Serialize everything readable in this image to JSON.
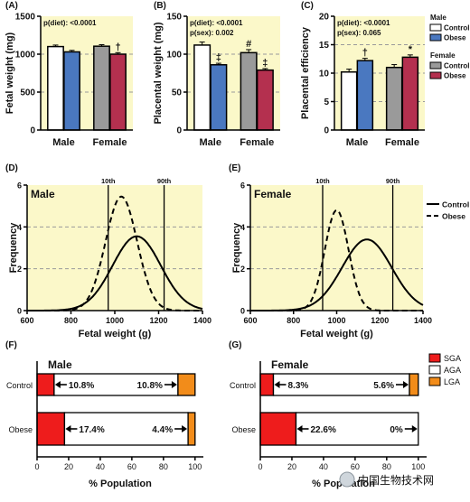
{
  "colors": {
    "panel_bg": "#fbf8c9",
    "male_control": "#ffffff",
    "male_obese": "#4a78c0",
    "female_control": "#9a9a9a",
    "female_obese": "#b4304f",
    "sga": "#ee1c1c",
    "agf": "#ffffff",
    "lga": "#f28c1a"
  },
  "legend_top": {
    "male_title": "Male",
    "female_title": "Female",
    "control": "Control",
    "obese": "Obese"
  },
  "legend_dist": {
    "control": "Control",
    "obese": "Obese"
  },
  "legend_pop": {
    "sga": "SGA",
    "aga": "AGA",
    "lga": "LGA"
  },
  "watermark": "中国生物技术网",
  "chart_data": [
    {
      "panel": "(A)",
      "type": "bar",
      "ylabel": "Fetal weight (mg)",
      "ylim": [
        0,
        1500
      ],
      "yticks": [
        0,
        500,
        1000,
        1500
      ],
      "categories": [
        "Male",
        "Female"
      ],
      "series": [
        {
          "name": "Control",
          "values": [
            1100,
            1105
          ],
          "errors": [
            20,
            20
          ]
        },
        {
          "name": "Obese",
          "values": [
            1030,
            1000
          ],
          "errors": [
            20,
            20
          ]
        }
      ],
      "stats": [
        "p(diet): <0.0001"
      ],
      "marks": [
        {
          "group": 1,
          "series": 1,
          "symbol": "†"
        }
      ]
    },
    {
      "panel": "(B)",
      "type": "bar",
      "ylabel": "Placental weight (mg)",
      "ylim": [
        0,
        150
      ],
      "yticks": [
        0,
        50,
        100,
        150
      ],
      "categories": [
        "Male",
        "Female"
      ],
      "series": [
        {
          "name": "Control",
          "values": [
            112,
            102
          ],
          "errors": [
            4,
            4
          ]
        },
        {
          "name": "Obese",
          "values": [
            86,
            79
          ],
          "errors": [
            2,
            2
          ]
        }
      ],
      "stats": [
        "p(diet): <0.0001",
        "p(sex): 0.002"
      ],
      "marks": [
        {
          "group": 0,
          "series": 1,
          "symbol": "‡"
        },
        {
          "group": 1,
          "series": 0,
          "symbol": "#"
        },
        {
          "group": 1,
          "series": 1,
          "symbol": "‡"
        }
      ]
    },
    {
      "panel": "(C)",
      "type": "bar",
      "ylabel": "Placental efficiency",
      "ylim": [
        0,
        20
      ],
      "yticks": [
        0,
        5,
        10,
        15,
        20
      ],
      "categories": [
        "Male",
        "Female"
      ],
      "series": [
        {
          "name": "Control",
          "values": [
            10.2,
            11.0
          ],
          "errors": [
            0.5,
            0.5
          ]
        },
        {
          "name": "Obese",
          "values": [
            12.2,
            12.8
          ],
          "errors": [
            0.4,
            0.4
          ]
        }
      ],
      "stats": [
        "p(diet): <0.0001",
        "p(sex): 0.065"
      ],
      "marks": [
        {
          "group": 0,
          "series": 1,
          "symbol": "†"
        },
        {
          "group": 1,
          "series": 1,
          "symbol": "*"
        }
      ]
    },
    {
      "panel": "(D)",
      "type": "line",
      "label": "Male",
      "xlabel": "Fetal weight (g)",
      "ylabel": "Frequency",
      "xlim": [
        600,
        1400
      ],
      "ylim": [
        0,
        6
      ],
      "xticks": [
        600,
        800,
        1000,
        1200,
        1400
      ],
      "yticks": [
        0,
        2,
        4,
        6
      ],
      "percentile_lines": [
        {
          "label": "10th",
          "x": 970
        },
        {
          "label": "90th",
          "x": 1225
        }
      ],
      "series": [
        {
          "name": "Control",
          "style": "solid",
          "mean": 1100,
          "sd": 110,
          "peak": 3.55
        },
        {
          "name": "Obese",
          "style": "dashed",
          "mean": 1030,
          "sd": 72,
          "peak": 5.45
        }
      ]
    },
    {
      "panel": "(E)",
      "type": "line",
      "label": "Female",
      "xlabel": "Fetal weight (g)",
      "ylabel": "Frequency",
      "xlim": [
        600,
        1400
      ],
      "ylim": [
        0,
        6
      ],
      "xticks": [
        600,
        800,
        1000,
        1200,
        1400
      ],
      "yticks": [
        0,
        2,
        4,
        6
      ],
      "percentile_lines": [
        {
          "label": "10th",
          "x": 935
        },
        {
          "label": "90th",
          "x": 1260
        }
      ],
      "series": [
        {
          "name": "Control",
          "style": "solid",
          "mean": 1140,
          "sd": 115,
          "peak": 3.4
        },
        {
          "name": "Obese",
          "style": "dashed",
          "mean": 1000,
          "sd": 55,
          "peak": 4.8
        }
      ]
    },
    {
      "panel": "(F)",
      "type": "bar",
      "orientation": "horizontal-stacked",
      "label": "Male",
      "xlabel": "% Population",
      "xlim": [
        0,
        100
      ],
      "xticks": [
        0,
        20,
        40,
        60,
        80,
        100
      ],
      "categories": [
        "Control",
        "Obese"
      ],
      "series": [
        {
          "name": "SGA",
          "values": [
            10.8,
            17.4
          ]
        },
        {
          "name": "AGA",
          "values": [
            78.4,
            78.2
          ]
        },
        {
          "name": "LGA",
          "values": [
            10.8,
            4.4
          ]
        }
      ],
      "annotations": [
        {
          "row": 0,
          "left": "10.8%",
          "right": "10.8%"
        },
        {
          "row": 1,
          "left": "17.4%",
          "right": "4.4%"
        }
      ]
    },
    {
      "panel": "(G)",
      "type": "bar",
      "orientation": "horizontal-stacked",
      "label": "Female",
      "xlabel": "% Population",
      "xlim": [
        0,
        100
      ],
      "xticks": [
        0,
        20,
        40,
        60,
        80,
        100
      ],
      "categories": [
        "Control",
        "Obese"
      ],
      "series": [
        {
          "name": "SGA",
          "values": [
            8.3,
            22.6
          ]
        },
        {
          "name": "AGA",
          "values": [
            86.1,
            77.4
          ]
        },
        {
          "name": "LGA",
          "values": [
            5.6,
            0
          ]
        }
      ],
      "annotations": [
        {
          "row": 0,
          "left": "8.3%",
          "right": "5.6%"
        },
        {
          "row": 1,
          "left": "22.6%",
          "right": "0%"
        }
      ]
    }
  ]
}
